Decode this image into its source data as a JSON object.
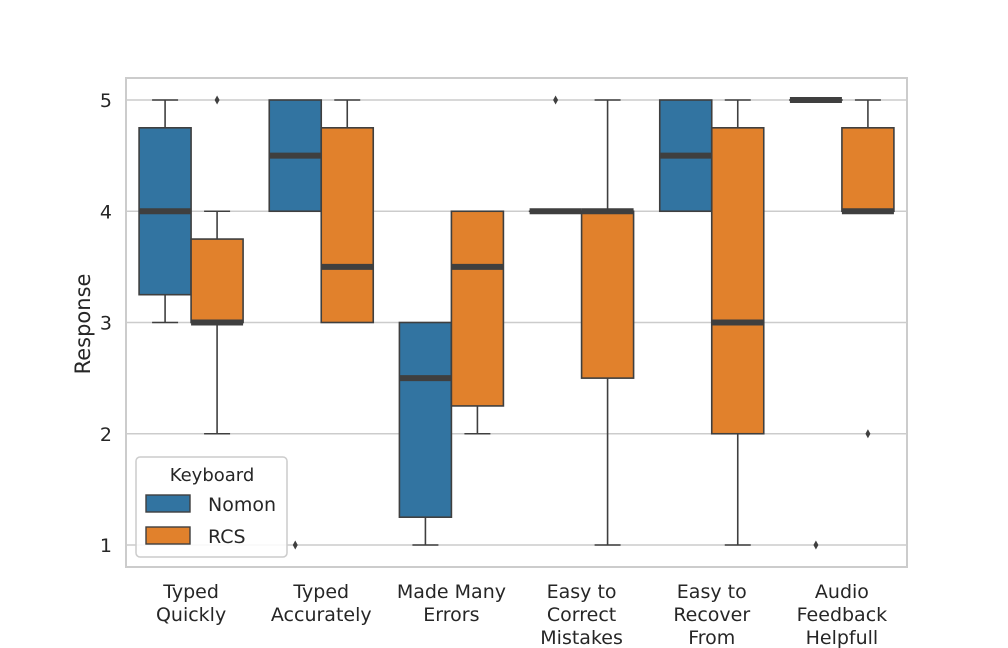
{
  "chart_data": {
    "type": "box",
    "title": "",
    "xlabel": "",
    "ylabel": "Response",
    "ylim": [
      0.8,
      5.2
    ],
    "yticks": [
      1,
      2,
      3,
      4,
      5
    ],
    "grid": "horizontal",
    "categories": [
      [
        "Typed",
        "Quickly"
      ],
      [
        "Typed",
        "Accurately"
      ],
      [
        "Made Many",
        "Errors"
      ],
      [
        "Easy to",
        "Correct",
        "Mistakes"
      ],
      [
        "Easy to",
        "Recover",
        "From"
      ],
      [
        "Audio",
        "Feedback",
        "Helpfull"
      ]
    ],
    "legend": {
      "title": "Keyboard",
      "position": "lower-left"
    },
    "series": [
      {
        "name": "Nomon",
        "color": "#3274a1",
        "boxes": [
          {
            "whislo": 3,
            "q1": 3.25,
            "med": 4,
            "q3": 4.75,
            "whishi": 5,
            "fliers": []
          },
          {
            "whislo": 4,
            "q1": 4,
            "med": 4.5,
            "q3": 5,
            "whishi": 5,
            "fliers": [
              1
            ]
          },
          {
            "whislo": 1,
            "q1": 1.25,
            "med": 2.5,
            "q3": 3,
            "whishi": 3,
            "fliers": []
          },
          {
            "whislo": 4,
            "q1": 4,
            "med": 4,
            "q3": 4,
            "whishi": 4,
            "fliers": [
              5
            ]
          },
          {
            "whislo": 4,
            "q1": 4,
            "med": 4.5,
            "q3": 5,
            "whishi": 5,
            "fliers": []
          },
          {
            "whislo": 5,
            "q1": 5,
            "med": 5,
            "q3": 5,
            "whishi": 5,
            "fliers": [
              1
            ]
          }
        ]
      },
      {
        "name": "RCS",
        "color": "#e1812c",
        "boxes": [
          {
            "whislo": 2,
            "q1": 3,
            "med": 3,
            "q3": 3.75,
            "whishi": 4,
            "fliers": [
              5
            ]
          },
          {
            "whislo": 3,
            "q1": 3,
            "med": 3.5,
            "q3": 4.75,
            "whishi": 5,
            "fliers": []
          },
          {
            "whislo": 2,
            "q1": 2.25,
            "med": 3.5,
            "q3": 4,
            "whishi": 4,
            "fliers": []
          },
          {
            "whislo": 1,
            "q1": 2.5,
            "med": 4,
            "q3": 4,
            "whishi": 5,
            "fliers": []
          },
          {
            "whislo": 1,
            "q1": 2,
            "med": 3,
            "q3": 4.75,
            "whishi": 5,
            "fliers": []
          },
          {
            "whislo": 4,
            "q1": 4,
            "med": 4,
            "q3": 4.75,
            "whishi": 5,
            "fliers": [
              2
            ]
          }
        ]
      }
    ]
  }
}
